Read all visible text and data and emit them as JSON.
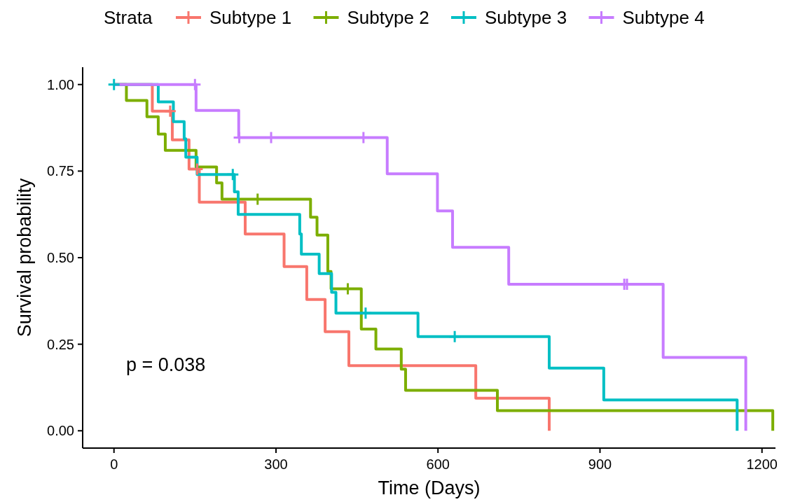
{
  "chart_data": {
    "type": "step",
    "xlabel": "Time (Days)",
    "ylabel": "Survival probability",
    "legend_title": "Strata",
    "legend": "top",
    "xlim": [
      -58,
      1225
    ],
    "xticks": [
      0,
      300,
      600,
      900,
      1200
    ],
    "ylim": [
      -0.05,
      1.05
    ],
    "yticks": [
      {
        "value": 0,
        "label": "0.00"
      },
      {
        "value": 0.25,
        "label": "0.25"
      },
      {
        "value": 0.5,
        "label": "0.50"
      },
      {
        "value": 0.75,
        "label": "0.75"
      },
      {
        "value": 1,
        "label": "1.00"
      }
    ],
    "annotations": [
      "p = 0.038"
    ],
    "series": [
      {
        "name": "Subtype 1",
        "color": "#f8766d",
        "x": [
          0,
          71,
          108,
          139,
          158,
          243,
          315,
          357,
          391,
          435,
          670,
          806
        ],
        "values": [
          1,
          0.923,
          0.84,
          0.756,
          0.66,
          0.568,
          0.474,
          0.379,
          0.286,
          0.188,
          0.094,
          0
        ]
      },
      {
        "name": "Subtype 2",
        "color": "#7cae00",
        "x": [
          0,
          23,
          61,
          82,
          95,
          152,
          190,
          200,
          364,
          376,
          396,
          402,
          458,
          485,
          532,
          540,
          710,
          1220
        ],
        "values": [
          1,
          0.954,
          0.907,
          0.857,
          0.81,
          0.762,
          0.716,
          0.669,
          0.617,
          0.565,
          0.46,
          0.41,
          0.294,
          0.236,
          0.178,
          0.117,
          0.058,
          0
        ]
      },
      {
        "name": "Subtype 3",
        "color": "#00bfc4",
        "x": [
          0,
          82,
          110,
          130,
          133,
          154,
          223,
          230,
          344,
          347,
          380,
          403,
          411,
          563,
          806,
          907,
          1154
        ],
        "values": [
          1,
          0.95,
          0.893,
          0.843,
          0.79,
          0.74,
          0.69,
          0.625,
          0.568,
          0.51,
          0.454,
          0.4,
          0.34,
          0.272,
          0.181,
          0.089,
          0
        ]
      },
      {
        "name": "Subtype 4",
        "color": "#c77cff",
        "x": [
          0,
          152,
          231,
          506,
          599,
          627,
          731,
          1017,
          1170
        ],
        "values": [
          1,
          0.925,
          0.847,
          0.742,
          0.635,
          0.53,
          0.423,
          0.212,
          0
        ]
      },
      {
        "type": "scatter",
        "marker": "cross",
        "color": "#f8766d",
        "x": [
          104,
          154
        ],
        "values": [
          0.923,
          0.756
        ]
      },
      {
        "type": "scatter",
        "marker": "cross",
        "color": "#7cae00",
        "x": [
          266,
          433
        ],
        "values": [
          0.669,
          0.41
        ]
      },
      {
        "type": "scatter",
        "marker": "cross",
        "color": "#00bfc4",
        "x": [
          0,
          220,
          466,
          631
        ],
        "values": [
          1,
          0.74,
          0.34,
          0.272
        ]
      },
      {
        "type": "scatter",
        "marker": "cross",
        "color": "#c77cff",
        "x": [
          150,
          232,
          291,
          462,
          945,
          950
        ],
        "values": [
          1,
          0.847,
          0.847,
          0.847,
          0.423,
          0.423
        ]
      }
    ]
  }
}
